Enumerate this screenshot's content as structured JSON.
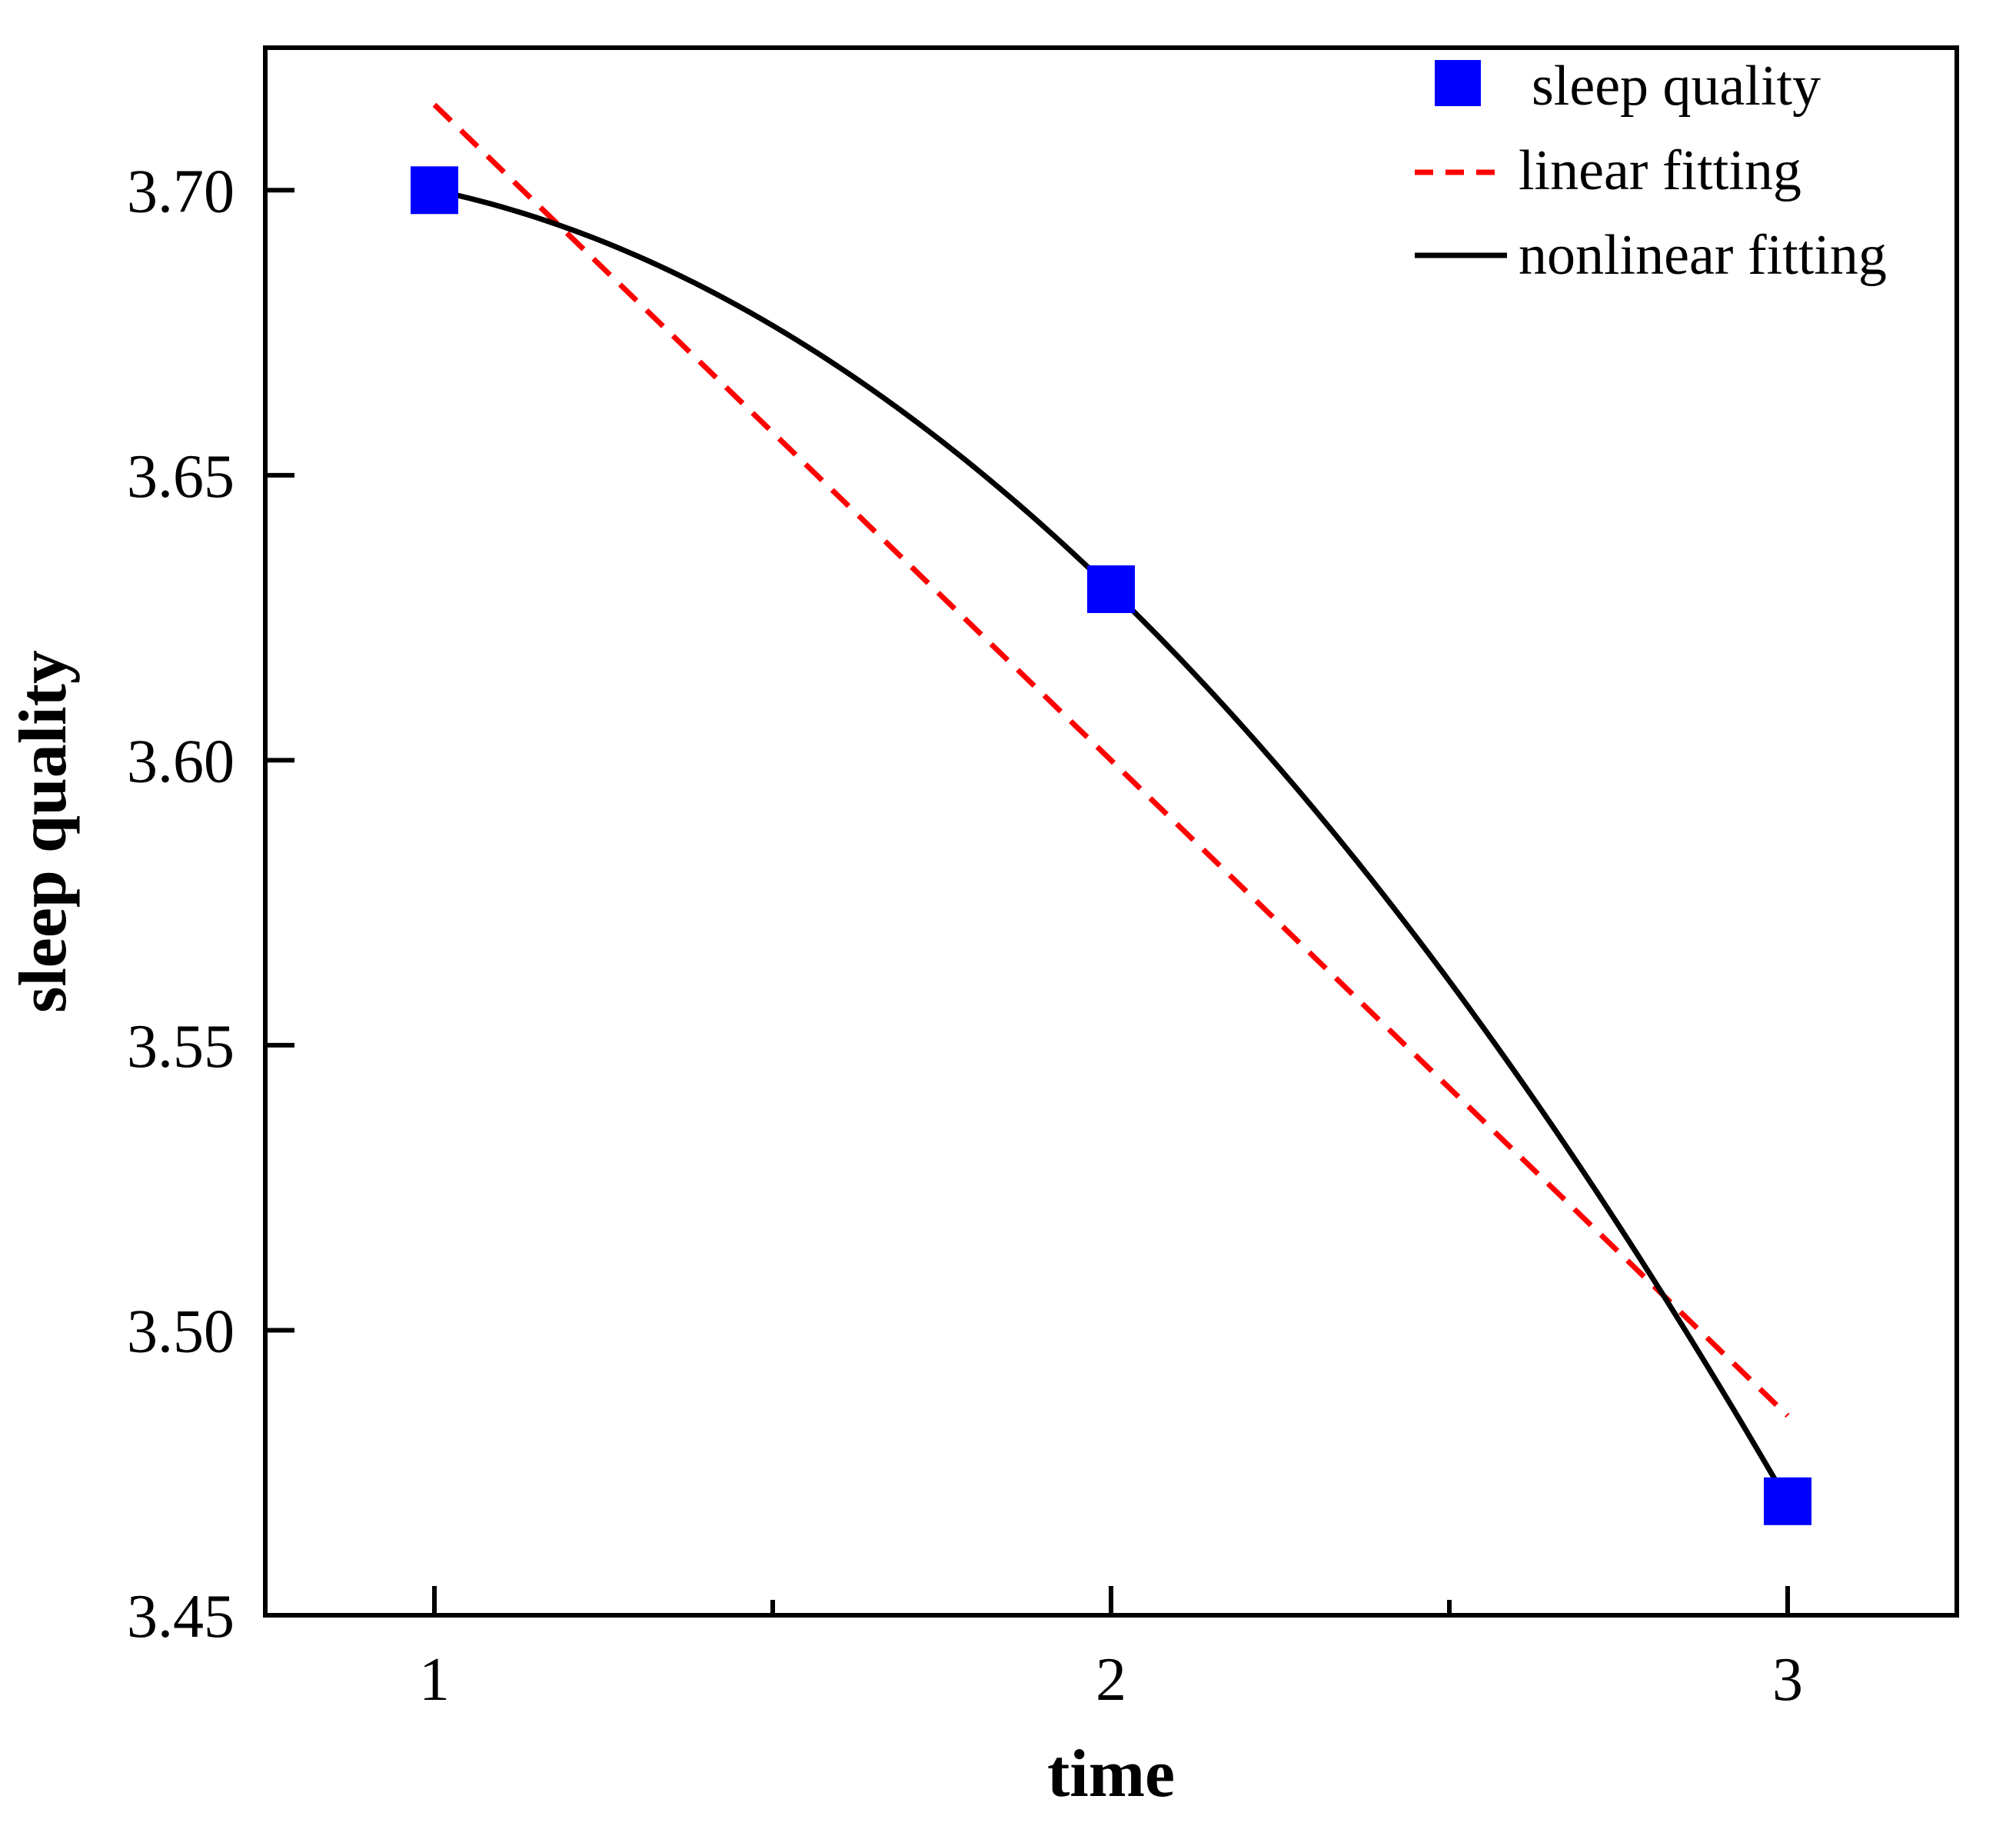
{
  "chart_data": {
    "type": "scatter",
    "title": "",
    "xlabel": "time",
    "ylabel": "sleep quality",
    "xlim": [
      0.75,
      3.25
    ],
    "ylim": [
      3.45,
      3.725
    ],
    "x_ticks": [
      1,
      2,
      3
    ],
    "x_minor_ticks": [
      1.5,
      2.5
    ],
    "x_tick_labels": [
      "1",
      "2",
      "3"
    ],
    "y_ticks": [
      3.45,
      3.5,
      3.55,
      3.6,
      3.65,
      3.7
    ],
    "y_tick_labels": [
      "3.45",
      "3.50",
      "3.55",
      "3.60",
      "3.65",
      "3.70"
    ],
    "grid": false,
    "legend_position": "top-right",
    "series": [
      {
        "name": "sleep quality",
        "kind": "scatter",
        "marker": "square",
        "color": "#0000ff",
        "x": [
          1,
          2,
          3
        ],
        "y": [
          3.7,
          3.63,
          3.47
        ]
      },
      {
        "name": "linear fitting",
        "kind": "line",
        "style": "dashed",
        "color": "#ff0000",
        "x": [
          1,
          3
        ],
        "y": [
          3.715,
          3.485
        ]
      },
      {
        "name": "nonlinear fitting",
        "kind": "curve",
        "style": "solid",
        "color": "#000000",
        "x": [
          1,
          2,
          3
        ],
        "y": [
          3.7,
          3.63,
          3.47
        ]
      }
    ]
  }
}
